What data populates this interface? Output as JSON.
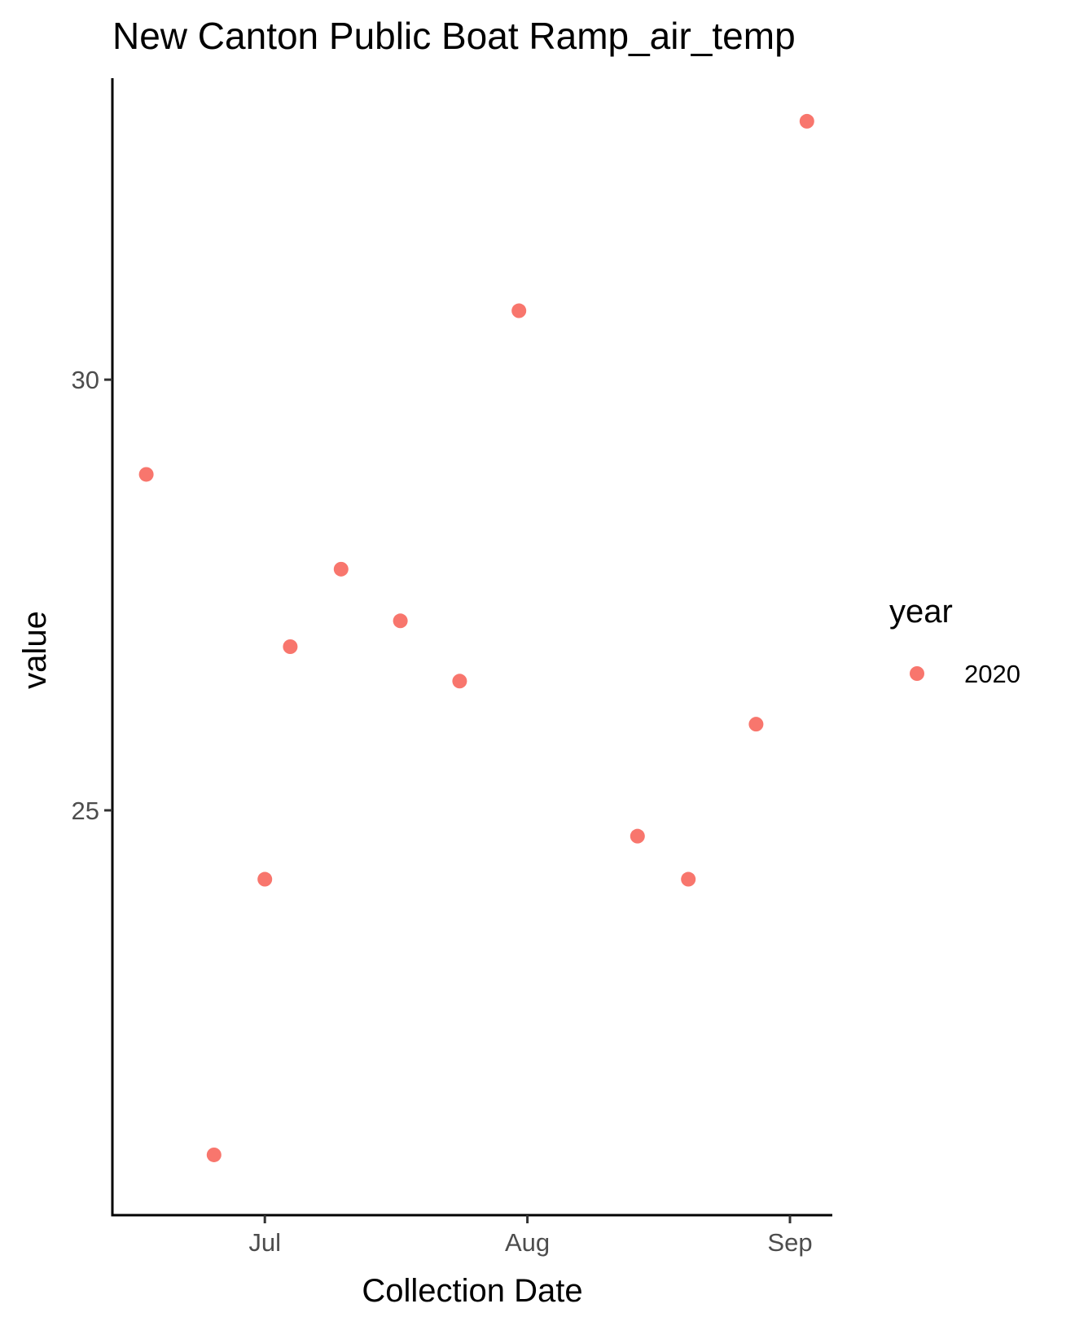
{
  "chart_data": {
    "type": "scatter",
    "title": "New Canton Public Boat Ramp_air_temp",
    "xlabel": "Collection Date",
    "ylabel": "value",
    "x_axis_type": "date",
    "xlim": [
      "2020-06-13",
      "2020-09-06"
    ],
    "ylim": [
      20.3,
      33.5
    ],
    "x_ticks": [
      {
        "value": "2020-07-01",
        "label": "Jul"
      },
      {
        "value": "2020-08-01",
        "label": "Aug"
      },
      {
        "value": "2020-09-01",
        "label": "Sep"
      }
    ],
    "y_ticks": [
      {
        "value": 25,
        "label": "25"
      },
      {
        "value": 30,
        "label": "30"
      }
    ],
    "grid": false,
    "legend": {
      "title": "year",
      "placement": "right",
      "entries": [
        {
          "label": "2020",
          "color": "#f8766d"
        }
      ]
    },
    "series": [
      {
        "name": "2020",
        "color": "#f8766d",
        "points": [
          {
            "x": "2020-06-17",
            "y": 28.9
          },
          {
            "x": "2020-06-25",
            "y": 21.0
          },
          {
            "x": "2020-07-01",
            "y": 24.2
          },
          {
            "x": "2020-07-04",
            "y": 26.9
          },
          {
            "x": "2020-07-10",
            "y": 27.8
          },
          {
            "x": "2020-07-17",
            "y": 27.2
          },
          {
            "x": "2020-07-24",
            "y": 26.5
          },
          {
            "x": "2020-07-31",
            "y": 30.8
          },
          {
            "x": "2020-08-14",
            "y": 24.7
          },
          {
            "x": "2020-08-20",
            "y": 24.2
          },
          {
            "x": "2020-08-28",
            "y": 26.0
          },
          {
            "x": "2020-09-03",
            "y": 33.0
          }
        ]
      }
    ]
  }
}
